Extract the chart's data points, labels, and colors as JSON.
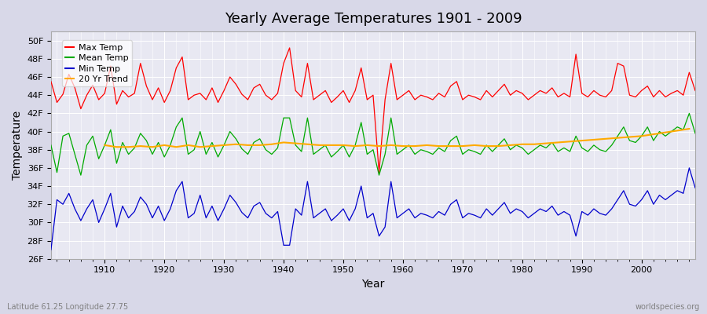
{
  "title": "Yearly Average Temperatures 1901 - 2009",
  "xlabel": "Year",
  "ylabel": "Temperature",
  "footnote_left": "Latitude 61.25 Longitude 27.75",
  "footnote_right": "worldspecies.org",
  "ylim": [
    26,
    51
  ],
  "yticks": [
    26,
    28,
    30,
    32,
    34,
    36,
    38,
    40,
    42,
    44,
    46,
    48,
    50
  ],
  "ytick_labels": [
    "26F",
    "28F",
    "30F",
    "32F",
    "34F",
    "36F",
    "38F",
    "40F",
    "42F",
    "44F",
    "46F",
    "48F",
    "50F"
  ],
  "xlim": [
    1901,
    2009
  ],
  "legend": [
    "Max Temp",
    "Mean Temp",
    "Min Temp",
    "20 Yr Trend"
  ],
  "colors": {
    "max": "#ff0000",
    "mean": "#00aa00",
    "min": "#0000cc",
    "trend": "#ffaa00",
    "background": "#e8e8f0",
    "plot_bg": "#f0f0f8"
  },
  "max_temps": [
    45.5,
    43.2,
    44.1,
    46.3,
    44.8,
    42.5,
    44.0,
    45.1,
    43.5,
    44.2,
    47.2,
    43.0,
    44.5,
    43.8,
    44.2,
    47.5,
    45.0,
    43.5,
    44.8,
    43.2,
    44.5,
    47.0,
    48.2,
    43.5,
    44.0,
    44.2,
    43.5,
    44.8,
    43.2,
    44.5,
    46.0,
    45.2,
    44.1,
    43.5,
    44.8,
    45.2,
    44.0,
    43.5,
    44.2,
    47.5,
    49.2,
    44.5,
    43.8,
    47.5,
    43.5,
    44.0,
    44.5,
    43.2,
    43.8,
    44.5,
    43.2,
    44.5,
    47.0,
    43.5,
    44.0,
    35.5,
    43.5,
    47.5,
    43.5,
    44.0,
    44.5,
    43.5,
    44.0,
    43.8,
    43.5,
    44.2,
    43.8,
    45.0,
    45.5,
    43.5,
    44.0,
    43.8,
    43.5,
    44.5,
    43.8,
    44.5,
    45.2,
    44.0,
    44.5,
    44.2,
    43.5,
    44.0,
    44.5,
    44.2,
    44.8,
    43.8,
    44.2,
    43.8,
    48.5,
    44.2,
    43.8,
    44.5,
    44.0,
    43.8,
    44.5,
    47.5,
    47.2,
    44.0,
    43.8,
    44.5,
    45.0,
    43.8,
    44.5,
    43.8,
    44.2,
    44.5,
    44.0,
    46.5,
    44.5
  ],
  "mean_temps": [
    38.5,
    35.5,
    39.5,
    39.8,
    37.5,
    35.2,
    38.5,
    39.5,
    37.0,
    38.5,
    40.2,
    36.5,
    38.8,
    37.5,
    38.2,
    39.8,
    39.0,
    37.5,
    38.8,
    37.2,
    38.5,
    40.5,
    41.5,
    37.5,
    38.0,
    40.0,
    37.5,
    38.8,
    37.2,
    38.5,
    40.0,
    39.2,
    38.1,
    37.5,
    38.8,
    39.2,
    38.0,
    37.5,
    38.2,
    41.5,
    41.5,
    38.5,
    37.8,
    41.5,
    37.5,
    38.0,
    38.5,
    37.2,
    37.8,
    38.5,
    37.2,
    38.5,
    41.0,
    37.5,
    38.0,
    35.2,
    37.5,
    41.5,
    37.5,
    38.0,
    38.5,
    37.5,
    38.0,
    37.8,
    37.5,
    38.2,
    37.8,
    39.0,
    39.5,
    37.5,
    38.0,
    37.8,
    37.5,
    38.5,
    37.8,
    38.5,
    39.2,
    38.0,
    38.5,
    38.2,
    37.5,
    38.0,
    38.5,
    38.2,
    38.8,
    37.8,
    38.2,
    37.8,
    39.5,
    38.2,
    37.8,
    38.5,
    38.0,
    37.8,
    38.5,
    39.5,
    40.5,
    39.0,
    38.8,
    39.5,
    40.5,
    39.0,
    40.0,
    39.5,
    40.0,
    40.5,
    40.2,
    42.0,
    39.8
  ],
  "min_temps": [
    27.0,
    32.5,
    32.0,
    33.2,
    31.5,
    30.2,
    31.5,
    32.5,
    30.0,
    31.5,
    33.2,
    29.5,
    31.8,
    30.5,
    31.2,
    32.8,
    32.0,
    30.5,
    31.8,
    30.2,
    31.5,
    33.5,
    34.5,
    30.5,
    31.0,
    33.0,
    30.5,
    31.8,
    30.2,
    31.5,
    33.0,
    32.2,
    31.1,
    30.5,
    31.8,
    32.2,
    31.0,
    30.5,
    31.2,
    27.5,
    27.5,
    31.5,
    30.8,
    34.5,
    30.5,
    31.0,
    31.5,
    30.2,
    30.8,
    31.5,
    30.2,
    31.5,
    34.0,
    30.5,
    31.0,
    28.5,
    29.5,
    34.5,
    30.5,
    31.0,
    31.5,
    30.5,
    31.0,
    30.8,
    30.5,
    31.2,
    30.8,
    32.0,
    32.5,
    30.5,
    31.0,
    30.8,
    30.5,
    31.5,
    30.8,
    31.5,
    32.2,
    31.0,
    31.5,
    31.2,
    30.5,
    31.0,
    31.5,
    31.2,
    31.8,
    30.8,
    31.2,
    30.8,
    28.5,
    31.2,
    30.8,
    31.5,
    31.0,
    30.8,
    31.5,
    32.5,
    33.5,
    32.0,
    31.8,
    32.5,
    33.5,
    32.0,
    33.0,
    32.5,
    33.0,
    33.5,
    33.2,
    36.0,
    33.8
  ],
  "trend_years": [
    1910,
    1912,
    1914,
    1916,
    1918,
    1920,
    1922,
    1924,
    1926,
    1928,
    1930,
    1932,
    1934,
    1936,
    1938,
    1940,
    1942,
    1944,
    1946,
    1948,
    1950,
    1952,
    1954,
    1956,
    1958,
    1960,
    1962,
    1964,
    1966,
    1968,
    1970,
    1972,
    1974,
    1976,
    1978,
    1980,
    1982,
    1984,
    1986,
    1988,
    1990,
    1992,
    1994,
    1996,
    1998,
    2000,
    2002,
    2004,
    2006,
    2008
  ],
  "trend_vals": [
    38.5,
    38.3,
    38.3,
    38.4,
    38.3,
    38.5,
    38.3,
    38.5,
    38.3,
    38.4,
    38.5,
    38.6,
    38.5,
    38.5,
    38.6,
    38.8,
    38.7,
    38.6,
    38.5,
    38.5,
    38.5,
    38.4,
    38.5,
    38.4,
    38.5,
    38.4,
    38.4,
    38.5,
    38.4,
    38.4,
    38.4,
    38.5,
    38.4,
    38.4,
    38.5,
    38.6,
    38.6,
    38.7,
    38.8,
    38.9,
    39.0,
    39.1,
    39.2,
    39.3,
    39.4,
    39.5,
    39.7,
    39.9,
    40.1,
    40.3
  ]
}
